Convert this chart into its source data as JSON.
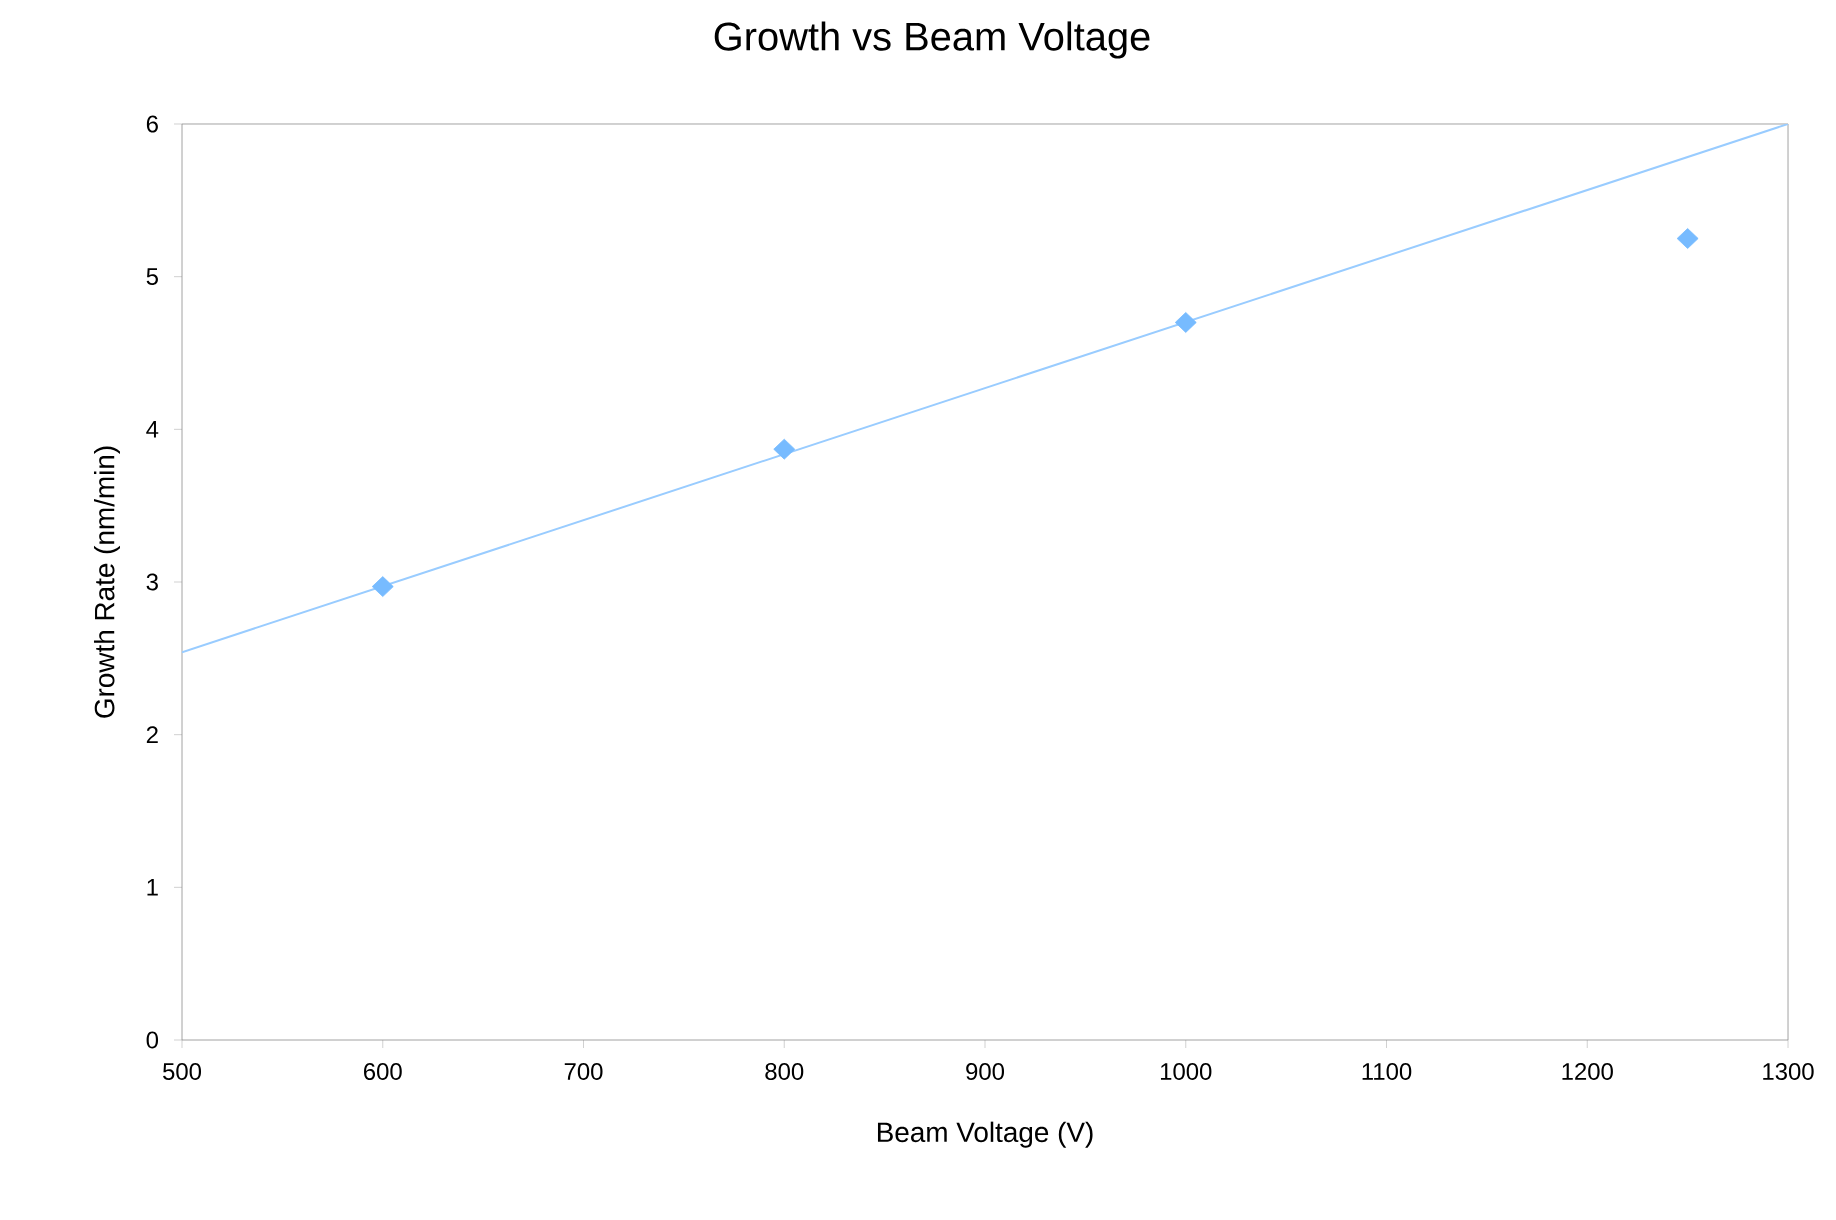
{
  "chart_data": {
    "type": "scatter",
    "title": "Growth vs Beam Voltage",
    "xlabel": "Beam Voltage (V)",
    "ylabel": "Growth Rate (nm/min)",
    "xlim": [
      500,
      1300
    ],
    "xticks": [
      500,
      600,
      700,
      800,
      900,
      1000,
      1100,
      1200,
      1300
    ],
    "ylim": [
      0,
      6
    ],
    "yticks": [
      0,
      1,
      2,
      3,
      4,
      5,
      6
    ],
    "marker": "diamond",
    "series": [
      {
        "color": "#77bbff",
        "x": [
          600,
          800,
          1000,
          1250
        ],
        "values": [
          2.97,
          3.87,
          4.7,
          5.25
        ]
      },
      {
        "type": "line",
        "color": "#99ccff",
        "marker": "none",
        "x": [
          500,
          1300
        ],
        "values": [
          2.54,
          6.0
        ]
      }
    ]
  }
}
